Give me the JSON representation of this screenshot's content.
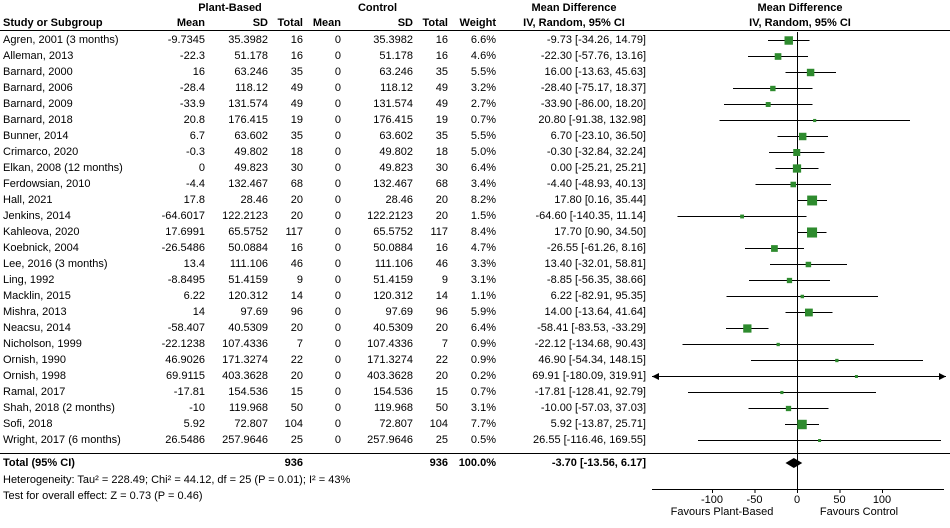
{
  "header": {
    "group1": "Plant-Based",
    "group2": "Control",
    "effect": "Mean Difference",
    "effect_sub": "IV, Random, 95% CI",
    "col_study": "Study or Subgroup",
    "col_mean": "Mean",
    "col_sd": "SD",
    "col_total": "Total",
    "col_weight": "Weight"
  },
  "total_row": {
    "label": "Total (95% CI)",
    "n1": "936",
    "n2": "936",
    "weight": "100.0%",
    "ci": "-3.70 [-13.56, 6.17]"
  },
  "footer": {
    "heterogeneity": "Heterogeneity: Tau² = 228.49; Chi² = 44.12, df = 25 (P = 0.01); I² = 43%",
    "overall_effect": "Test for overall effect: Z = 0.73 (P = 0.46)",
    "favours_left": "Favours Plant-Based",
    "favours_right": "Favours Control"
  },
  "chart_data": {
    "type": "scatter",
    "variant": "forest-plot",
    "effect_measure": "Mean Difference, IV, Random, 95% CI",
    "marker_color": "#2e8b2e",
    "line_color": "#000000",
    "axis": {
      "ticks": [
        -100,
        -50,
        0,
        50,
        100
      ],
      "xlim": [
        -170,
        175
      ]
    },
    "studies": [
      {
        "name": "Agren, 2001 (3 months)",
        "m1": "-9.7345",
        "sd1": "35.3982",
        "n1": "16",
        "m2": "0",
        "sd2": "35.3982",
        "n2": "16",
        "w": "6.6%",
        "ci": "-9.73 [-34.26, 14.79]",
        "est": -9.73,
        "lo": -34.26,
        "hi": 14.79,
        "wn": 6.6
      },
      {
        "name": "Alleman, 2013",
        "m1": "-22.3",
        "sd1": "51.178",
        "n1": "16",
        "m2": "0",
        "sd2": "51.178",
        "n2": "16",
        "w": "4.6%",
        "ci": "-22.30 [-57.76, 13.16]",
        "est": -22.3,
        "lo": -57.76,
        "hi": 13.16,
        "wn": 4.6
      },
      {
        "name": "Barnard, 2000",
        "m1": "16",
        "sd1": "63.246",
        "n1": "35",
        "m2": "0",
        "sd2": "63.246",
        "n2": "35",
        "w": "5.5%",
        "ci": "16.00 [-13.63, 45.63]",
        "est": 16.0,
        "lo": -13.63,
        "hi": 45.63,
        "wn": 5.5
      },
      {
        "name": "Barnard, 2006",
        "m1": "-28.4",
        "sd1": "118.12",
        "n1": "49",
        "m2": "0",
        "sd2": "118.12",
        "n2": "49",
        "w": "3.2%",
        "ci": "-28.40 [-75.17, 18.37]",
        "est": -28.4,
        "lo": -75.17,
        "hi": 18.37,
        "wn": 3.2
      },
      {
        "name": "Barnard, 2009",
        "m1": "-33.9",
        "sd1": "131.574",
        "n1": "49",
        "m2": "0",
        "sd2": "131.574",
        "n2": "49",
        "w": "2.7%",
        "ci": "-33.90 [-86.00, 18.20]",
        "est": -33.9,
        "lo": -86.0,
        "hi": 18.2,
        "wn": 2.7
      },
      {
        "name": "Barnard, 2018",
        "m1": "20.8",
        "sd1": "176.415",
        "n1": "19",
        "m2": "0",
        "sd2": "176.415",
        "n2": "19",
        "w": "0.7%",
        "ci": "20.80 [-91.38, 132.98]",
        "est": 20.8,
        "lo": -91.38,
        "hi": 132.98,
        "wn": 0.7
      },
      {
        "name": "Bunner, 2014",
        "m1": "6.7",
        "sd1": "63.602",
        "n1": "35",
        "m2": "0",
        "sd2": "63.602",
        "n2": "35",
        "w": "5.5%",
        "ci": "6.70 [-23.10, 36.50]",
        "est": 6.7,
        "lo": -23.1,
        "hi": 36.5,
        "wn": 5.5
      },
      {
        "name": "Crimarco, 2020",
        "m1": "-0.3",
        "sd1": "49.802",
        "n1": "18",
        "m2": "0",
        "sd2": "49.802",
        "n2": "18",
        "w": "5.0%",
        "ci": "-0.30 [-32.84, 32.24]",
        "est": -0.3,
        "lo": -32.84,
        "hi": 32.24,
        "wn": 5.0
      },
      {
        "name": "Elkan, 2008 (12 months)",
        "m1": "0",
        "sd1": "49.823",
        "n1": "30",
        "m2": "0",
        "sd2": "49.823",
        "n2": "30",
        "w": "6.4%",
        "ci": "0.00 [-25.21, 25.21]",
        "est": 0.0,
        "lo": -25.21,
        "hi": 25.21,
        "wn": 6.4
      },
      {
        "name": "Ferdowsian, 2010",
        "m1": "-4.4",
        "sd1": "132.467",
        "n1": "68",
        "m2": "0",
        "sd2": "132.467",
        "n2": "68",
        "w": "3.4%",
        "ci": "-4.40 [-48.93, 40.13]",
        "est": -4.4,
        "lo": -48.93,
        "hi": 40.13,
        "wn": 3.4
      },
      {
        "name": "Hall, 2021",
        "m1": "17.8",
        "sd1": "28.46",
        "n1": "20",
        "m2": "0",
        "sd2": "28.46",
        "n2": "20",
        "w": "8.2%",
        "ci": "17.80 [0.16, 35.44]",
        "est": 17.8,
        "lo": 0.16,
        "hi": 35.44,
        "wn": 8.2
      },
      {
        "name": "Jenkins, 2014",
        "m1": "-64.6017",
        "sd1": "122.2123",
        "n1": "20",
        "m2": "0",
        "sd2": "122.2123",
        "n2": "20",
        "w": "1.5%",
        "ci": "-64.60 [-140.35, 11.14]",
        "est": -64.6,
        "lo": -140.35,
        "hi": 11.14,
        "wn": 1.5
      },
      {
        "name": "Kahleova, 2020",
        "m1": "17.6991",
        "sd1": "65.5752",
        "n1": "117",
        "m2": "0",
        "sd2": "65.5752",
        "n2": "117",
        "w": "8.4%",
        "ci": "17.70 [0.90, 34.50]",
        "est": 17.7,
        "lo": 0.9,
        "hi": 34.5,
        "wn": 8.4
      },
      {
        "name": "Koebnick, 2004",
        "m1": "-26.5486",
        "sd1": "50.0884",
        "n1": "16",
        "m2": "0",
        "sd2": "50.0884",
        "n2": "16",
        "w": "4.7%",
        "ci": "-26.55 [-61.26, 8.16]",
        "est": -26.55,
        "lo": -61.26,
        "hi": 8.16,
        "wn": 4.7
      },
      {
        "name": "Lee, 2016 (3 months)",
        "m1": "13.4",
        "sd1": "111.106",
        "n1": "46",
        "m2": "0",
        "sd2": "111.106",
        "n2": "46",
        "w": "3.3%",
        "ci": "13.40 [-32.01, 58.81]",
        "est": 13.4,
        "lo": -32.01,
        "hi": 58.81,
        "wn": 3.3
      },
      {
        "name": "Ling, 1992",
        "m1": "-8.8495",
        "sd1": "51.4159",
        "n1": "9",
        "m2": "0",
        "sd2": "51.4159",
        "n2": "9",
        "w": "3.1%",
        "ci": "-8.85 [-56.35, 38.66]",
        "est": -8.85,
        "lo": -56.35,
        "hi": 38.66,
        "wn": 3.1
      },
      {
        "name": "Macklin, 2015",
        "m1": "6.22",
        "sd1": "120.312",
        "n1": "14",
        "m2": "0",
        "sd2": "120.312",
        "n2": "14",
        "w": "1.1%",
        "ci": "6.22 [-82.91, 95.35]",
        "est": 6.22,
        "lo": -82.91,
        "hi": 95.35,
        "wn": 1.1
      },
      {
        "name": "Mishra, 2013",
        "m1": "14",
        "sd1": "97.69",
        "n1": "96",
        "m2": "0",
        "sd2": "97.69",
        "n2": "96",
        "w": "5.9%",
        "ci": "14.00 [-13.64, 41.64]",
        "est": 14.0,
        "lo": -13.64,
        "hi": 41.64,
        "wn": 5.9
      },
      {
        "name": "Neacsu, 2014",
        "m1": "-58.407",
        "sd1": "40.5309",
        "n1": "20",
        "m2": "0",
        "sd2": "40.5309",
        "n2": "20",
        "w": "6.4%",
        "ci": "-58.41 [-83.53, -33.29]",
        "est": -58.41,
        "lo": -83.53,
        "hi": -33.29,
        "wn": 6.4
      },
      {
        "name": "Nicholson, 1999",
        "m1": "-22.1238",
        "sd1": "107.4336",
        "n1": "7",
        "m2": "0",
        "sd2": "107.4336",
        "n2": "7",
        "w": "0.9%",
        "ci": "-22.12 [-134.68, 90.43]",
        "est": -22.12,
        "lo": -134.68,
        "hi": 90.43,
        "wn": 0.9
      },
      {
        "name": "Ornish, 1990",
        "m1": "46.9026",
        "sd1": "171.3274",
        "n1": "22",
        "m2": "0",
        "sd2": "171.3274",
        "n2": "22",
        "w": "0.9%",
        "ci": "46.90 [-54.34, 148.15]",
        "est": 46.9,
        "lo": -54.34,
        "hi": 148.15,
        "wn": 0.9
      },
      {
        "name": "Ornish, 1998",
        "m1": "69.9115",
        "sd1": "403.3628",
        "n1": "20",
        "m2": "0",
        "sd2": "403.3628",
        "n2": "20",
        "w": "0.2%",
        "ci": "69.91 [-180.09, 319.91]",
        "est": 69.91,
        "lo": -180.09,
        "hi": 319.91,
        "wn": 0.2
      },
      {
        "name": "Ramal, 2017",
        "m1": "-17.81",
        "sd1": "154.536",
        "n1": "15",
        "m2": "0",
        "sd2": "154.536",
        "n2": "15",
        "w": "0.7%",
        "ci": "-17.81 [-128.41, 92.79]",
        "est": -17.81,
        "lo": -128.41,
        "hi": 92.79,
        "wn": 0.7
      },
      {
        "name": "Shah, 2018 (2 months)",
        "m1": "-10",
        "sd1": "119.968",
        "n1": "50",
        "m2": "0",
        "sd2": "119.968",
        "n2": "50",
        "w": "3.1%",
        "ci": "-10.00 [-57.03, 37.03]",
        "est": -10.0,
        "lo": -57.03,
        "hi": 37.03,
        "wn": 3.1
      },
      {
        "name": "Sofi, 2018",
        "m1": "5.92",
        "sd1": "72.807",
        "n1": "104",
        "m2": "0",
        "sd2": "72.807",
        "n2": "104",
        "w": "7.7%",
        "ci": "5.92 [-13.87, 25.71]",
        "est": 5.92,
        "lo": -13.87,
        "hi": 25.71,
        "wn": 7.7
      },
      {
        "name": "Wright, 2017 (6 months)",
        "m1": "26.5486",
        "sd1": "257.9646",
        "n1": "25",
        "m2": "0",
        "sd2": "257.9646",
        "n2": "25",
        "w": "0.5%",
        "ci": "26.55 [-116.46, 169.55]",
        "est": 26.55,
        "lo": -116.46,
        "hi": 169.55,
        "wn": 0.5
      }
    ],
    "total": {
      "est": -3.7,
      "lo": -13.56,
      "hi": 6.17
    }
  }
}
